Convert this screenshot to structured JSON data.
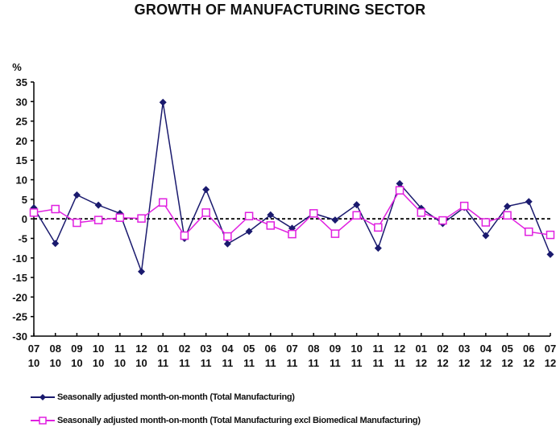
{
  "chart_data": {
    "type": "line",
    "title": "GROWTH OF MANUFACTURING SECTOR",
    "ylabel": "%",
    "xlabel": "",
    "ylim": [
      -30,
      35
    ],
    "yticks": [
      35,
      30,
      25,
      20,
      15,
      10,
      5,
      0,
      -5,
      -10,
      -15,
      -20,
      -25,
      -30
    ],
    "categories": [
      [
        "07",
        "10"
      ],
      [
        "08",
        "10"
      ],
      [
        "09",
        "10"
      ],
      [
        "10",
        "10"
      ],
      [
        "11",
        "10"
      ],
      [
        "12",
        "10"
      ],
      [
        "01",
        "11"
      ],
      [
        "02",
        "11"
      ],
      [
        "03",
        "11"
      ],
      [
        "04",
        "11"
      ],
      [
        "05",
        "11"
      ],
      [
        "06",
        "11"
      ],
      [
        "07",
        "11"
      ],
      [
        "08",
        "11"
      ],
      [
        "09",
        "11"
      ],
      [
        "10",
        "11"
      ],
      [
        "11",
        "11"
      ],
      [
        "12",
        "11"
      ],
      [
        "01",
        "12"
      ],
      [
        "02",
        "12"
      ],
      [
        "03",
        "12"
      ],
      [
        "04",
        "12"
      ],
      [
        "05",
        "12"
      ],
      [
        "06",
        "12"
      ],
      [
        "07",
        "12"
      ]
    ],
    "reference_line": 0,
    "legend_position": "bottom",
    "series": [
      {
        "name": "Seasonally adjusted month-on-month (Total Manufacturing)",
        "color": "#1a1a6e",
        "marker": "diamond",
        "values": [
          2.8,
          -6.3,
          6.1,
          3.5,
          1.4,
          -13.5,
          29.8,
          -5.0,
          7.5,
          -6.4,
          -3.2,
          1.0,
          -2.4,
          1.4,
          -0.3,
          3.6,
          -7.5,
          9.0,
          2.7,
          -1.2,
          2.9,
          -4.3,
          3.2,
          4.4,
          -9.1
        ]
      },
      {
        "name": "Seasonally adjusted month-on-month (Total Manufacturing excl Biomedical Manufacturing)",
        "color": "#e020e0",
        "marker": "square-open",
        "values": [
          1.6,
          2.5,
          -1.0,
          -0.3,
          0.3,
          0.1,
          4.2,
          -4.3,
          1.6,
          -4.5,
          0.7,
          -1.7,
          -3.9,
          1.4,
          -3.8,
          0.9,
          -2.2,
          7.3,
          1.6,
          -0.4,
          3.3,
          -0.9,
          0.9,
          -3.3,
          -4.1
        ]
      }
    ]
  }
}
